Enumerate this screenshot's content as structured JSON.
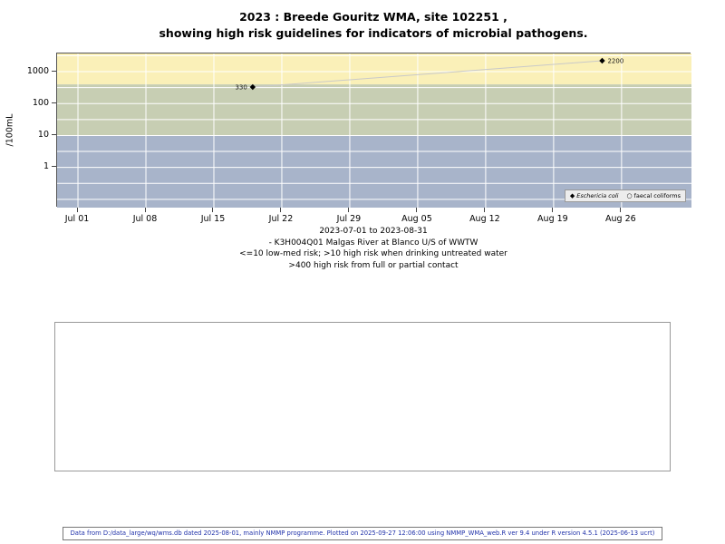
{
  "chart_data": {
    "type": "scatter",
    "title_lines": [
      "2023 : Breede Gouritz WMA, site 102251 ,",
      "showing high risk guidelines for indicators of microbial pathogens."
    ],
    "ylabel": "/100mL",
    "y_scale": "log",
    "log_range": [
      -1.26,
      3.57
    ],
    "day_range": [
      -2.15,
      63.2
    ],
    "grid": true,
    "line_color": "#c9c9c9",
    "marker_color": "#000000",
    "y_ticks": [
      {
        "label": "1",
        "value": 1
      },
      {
        "label": "10",
        "value": 10
      },
      {
        "label": "100",
        "value": 100
      },
      {
        "label": "1000",
        "value": 1000
      }
    ],
    "x_ticks": [
      {
        "label": "Jul 01",
        "day": 0
      },
      {
        "label": "Jul 08",
        "day": 7
      },
      {
        "label": "Jul 15",
        "day": 14
      },
      {
        "label": "Jul 22",
        "day": 21
      },
      {
        "label": "Jul 29",
        "day": 28
      },
      {
        "label": "Aug 05",
        "day": 35
      },
      {
        "label": "Aug 12",
        "day": 42
      },
      {
        "label": "Aug 19",
        "day": 49
      },
      {
        "label": "Aug 26",
        "day": 56
      }
    ],
    "bands": [
      {
        "meaning": "high risk from full or partial contact",
        "from": 400,
        "to": null,
        "color": "#faf0b8"
      },
      {
        "meaning": "high risk when drinking untreated water",
        "from": 10,
        "to": 400,
        "color": "#c7ceb3"
      },
      {
        "meaning": "low-med risk",
        "from": null,
        "to": 10,
        "color": "#a8b4ca"
      }
    ],
    "series": [
      {
        "name": "Eschericia coli",
        "marker": "filled-diamond",
        "points": [
          {
            "day": 18,
            "value": 330,
            "label": "330",
            "label_side": "left"
          },
          {
            "day": 54,
            "value": 2200,
            "label": "2200",
            "label_side": "right"
          }
        ]
      },
      {
        "name": "faecal coliforms",
        "marker": "open-circle",
        "points": []
      }
    ],
    "legend_position": "bottom-right"
  },
  "captions": [
    "2023-07-01 to 2023-08-31",
    "- K3H004Q01 Malgas River at Blanco U/S of WWTW",
    "<=10 low-med risk; >10 high risk when drinking untreated water",
    ">400 high risk from full or partial contact"
  ],
  "footer": {
    "text": "Data from D:/data_large/wq/wms.db dated 2025-08-01, mainly NMMP programme. Plotted on 2025-09-27 12:06:00 using NMMP_WMA_web.R ver 9.4 under R version 4.5.1 (2025-06-13 ucrt)"
  }
}
